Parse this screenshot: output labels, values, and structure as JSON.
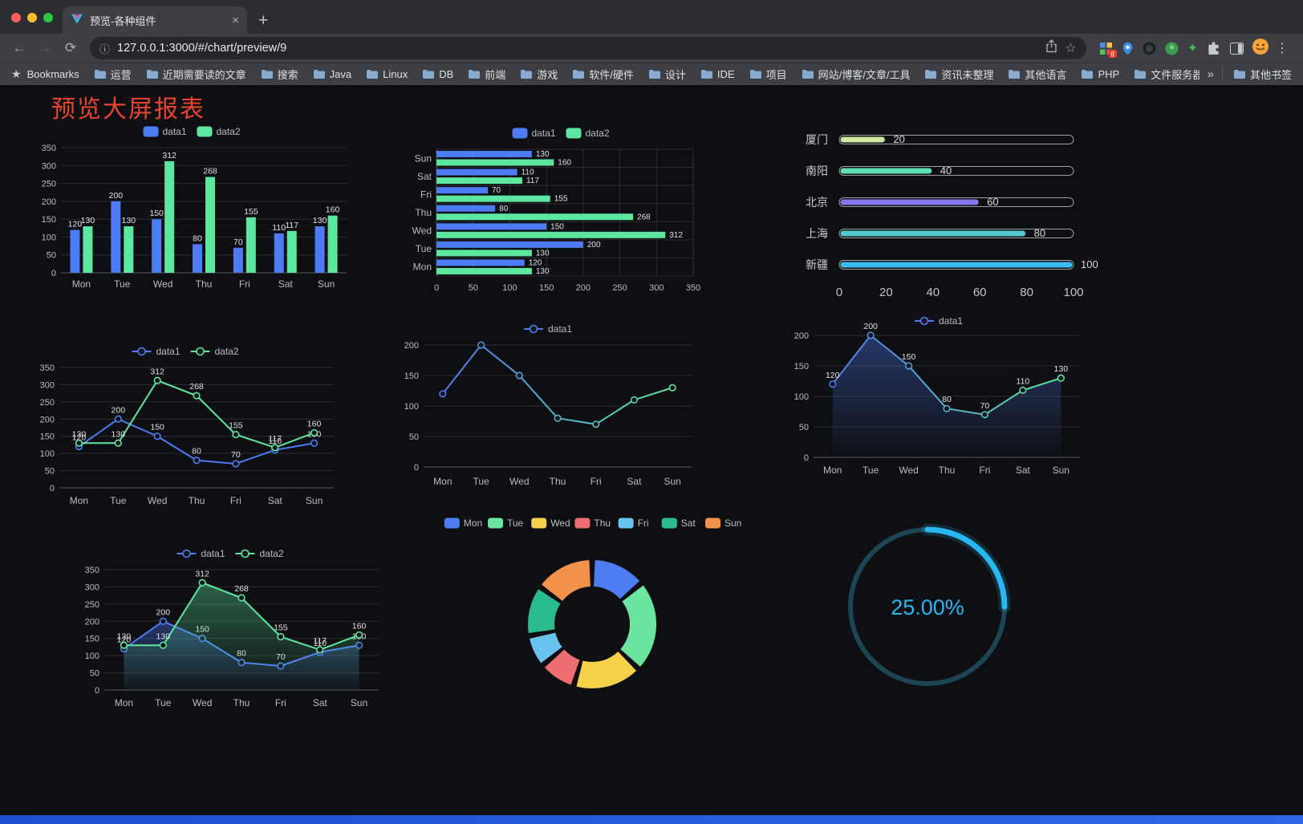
{
  "browser": {
    "tab_title": "预览-各种组件",
    "url": "127.0.0.1:3000/#/chart/preview/9",
    "bookmarks_label": "Bookmarks",
    "bookmarks": [
      "运营",
      "近期需要读的文章",
      "搜索",
      "Java",
      "Linux",
      "DB",
      "前端",
      "游戏",
      "软件/硬件",
      "设计",
      "IDE",
      "项目",
      "网站/博客/文章/工具",
      "资讯未整理",
      "其他语言",
      "PHP",
      "文件服务器"
    ],
    "bookmarks_overflow": "»",
    "other_bookmarks": "其他书签"
  },
  "page": {
    "title": "预览大屏报表",
    "title_color": "#e8442e"
  },
  "chart_data": [
    {
      "id": "bar-grouped",
      "type": "bar",
      "categories": [
        "Mon",
        "Tue",
        "Wed",
        "Thu",
        "Fri",
        "Sat",
        "Sun"
      ],
      "series": [
        {
          "name": "data1",
          "color": "#4d7bf3",
          "values": [
            120,
            200,
            150,
            80,
            70,
            110,
            130
          ]
        },
        {
          "name": "data2",
          "color": "#5ce6a0",
          "values": [
            130,
            130,
            312,
            268,
            155,
            117,
            160
          ]
        }
      ],
      "ylim": [
        0,
        350
      ],
      "ytick_step": 50,
      "grid": true,
      "legend_position": "top"
    },
    {
      "id": "hbar-grouped",
      "type": "hbar",
      "categories": [
        "Mon",
        "Tue",
        "Wed",
        "Thu",
        "Fri",
        "Sat",
        "Sun"
      ],
      "series": [
        {
          "name": "data1",
          "color": "#4d7bf3",
          "values": [
            120,
            200,
            150,
            80,
            70,
            110,
            130
          ]
        },
        {
          "name": "data2",
          "color": "#5ce6a0",
          "values": [
            130,
            130,
            312,
            268,
            155,
            117,
            160
          ]
        }
      ],
      "xlim": [
        0,
        350
      ],
      "xtick_step": 50,
      "grid": true,
      "legend_position": "top"
    },
    {
      "id": "city-progress",
      "type": "progress",
      "max": 100,
      "rows": [
        {
          "label": "厦门",
          "value": 20,
          "color": "#cfe9a2"
        },
        {
          "label": "南阳",
          "value": 40,
          "color": "#5fe0b2"
        },
        {
          "label": "北京",
          "value": 60,
          "color": "#8478ec"
        },
        {
          "label": "上海",
          "value": 80,
          "color": "#55c8cf"
        },
        {
          "label": "新疆",
          "value": 100,
          "color": "#3bbdf2"
        }
      ],
      "xticks": [
        0,
        20,
        40,
        60,
        80,
        100
      ]
    },
    {
      "id": "line-dual",
      "type": "line",
      "show_labels": true,
      "categories": [
        "Mon",
        "Tue",
        "Wed",
        "Thu",
        "Fri",
        "Sat",
        "Sun"
      ],
      "series": [
        {
          "name": "data1",
          "color": "#4d7bf3",
          "values": [
            120,
            200,
            150,
            80,
            70,
            110,
            130
          ]
        },
        {
          "name": "data2",
          "color": "#5ce6a0",
          "values": [
            130,
            130,
            312,
            268,
            155,
            117,
            160
          ]
        }
      ],
      "ylim": [
        0,
        350
      ],
      "ytick_step": 50,
      "legend_position": "top"
    },
    {
      "id": "line-single",
      "type": "line",
      "show_labels": false,
      "categories": [
        "Mon",
        "Tue",
        "Wed",
        "Thu",
        "Fri",
        "Sat",
        "Sun"
      ],
      "series": [
        {
          "name": "data1",
          "color": "#4d7bf3",
          "gradient": [
            "#4d7bf3",
            "#5ce6a0"
          ],
          "values": [
            120,
            200,
            150,
            80,
            70,
            110,
            130
          ]
        }
      ],
      "ylim": [
        0,
        200
      ],
      "ytick_step": 50,
      "legend_position": "top"
    },
    {
      "id": "area-single",
      "type": "line",
      "area": true,
      "show_labels": true,
      "categories": [
        "Mon",
        "Tue",
        "Wed",
        "Thu",
        "Fri",
        "Sat",
        "Sun"
      ],
      "series": [
        {
          "name": "data1",
          "color": "#4d7bf3",
          "gradient": [
            "#4d7bf3",
            "#5ce6a0"
          ],
          "values": [
            120,
            200,
            150,
            80,
            70,
            110,
            130
          ]
        }
      ],
      "ylim": [
        0,
        200
      ],
      "ytick_step": 50,
      "legend_position": "top"
    },
    {
      "id": "area-dual",
      "type": "line",
      "area": true,
      "show_labels": true,
      "categories": [
        "Mon",
        "Tue",
        "Wed",
        "Thu",
        "Fri",
        "Sat",
        "Sun"
      ],
      "series": [
        {
          "name": "data1",
          "color": "#4d7bf3",
          "values": [
            120,
            200,
            150,
            80,
            70,
            110,
            130
          ]
        },
        {
          "name": "data2",
          "color": "#5ce6a0",
          "values": [
            130,
            130,
            312,
            268,
            155,
            117,
            160
          ]
        }
      ],
      "ylim": [
        0,
        350
      ],
      "ytick_step": 50,
      "legend_position": "top"
    },
    {
      "id": "donut",
      "type": "pie",
      "labels": [
        "Mon",
        "Tue",
        "Wed",
        "Thu",
        "Fri",
        "Sat",
        "Sun"
      ],
      "values": [
        120,
        200,
        150,
        80,
        70,
        110,
        130
      ],
      "colors": [
        "#4e7df2",
        "#6ce5a1",
        "#f5d04b",
        "#ec6e71",
        "#68c4ee",
        "#2abb90",
        "#f2924a"
      ],
      "inner_radius": 47,
      "outer_radius": 80,
      "legend_position": "top"
    },
    {
      "id": "gauge-ring",
      "type": "gauge",
      "label": "25.00%",
      "percent": 25,
      "color": "#29b7f2",
      "track_color": "#1d4654"
    }
  ]
}
